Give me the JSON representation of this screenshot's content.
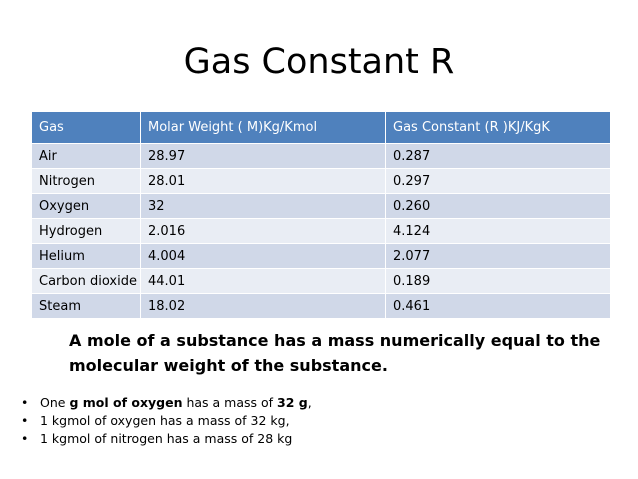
{
  "title": "Gas Constant R",
  "table": {
    "headers": [
      "Gas",
      "Molar Weight ( M)Kg/Kmol",
      "Gas Constant (R )KJ/KgK"
    ],
    "rows": [
      [
        "Air",
        "28.97",
        "0.287"
      ],
      [
        "Nitrogen",
        "28.01",
        "0.297"
      ],
      [
        "Oxygen",
        "32",
        "0.260"
      ],
      [
        "Hydrogen",
        "2.016",
        "4.124"
      ],
      [
        "Helium",
        "4.004",
        "2.077"
      ],
      [
        "Carbon dioxide",
        "44.01",
        "0.189"
      ],
      [
        "Steam",
        "18.02",
        "0.461"
      ]
    ]
  },
  "note": "A mole of a substance has a mass numerically equal to the molecular weight of the substance.",
  "bullets": [
    {
      "parts": [
        {
          "text": "One ",
          "bold": false
        },
        {
          "text": "g mol of oxygen",
          "bold": true
        },
        {
          "text": " has a mass of ",
          "bold": false
        },
        {
          "text": "32 g",
          "bold": true
        },
        {
          "text": ",",
          "bold": false
        }
      ]
    },
    {
      "parts": [
        {
          "text": "1 kgmol of oxygen has a mass of 32 kg,",
          "bold": false
        }
      ]
    },
    {
      "parts": [
        {
          "text": "1 kgmol of nitrogen has a mass of 28 kg",
          "bold": false
        }
      ]
    }
  ]
}
